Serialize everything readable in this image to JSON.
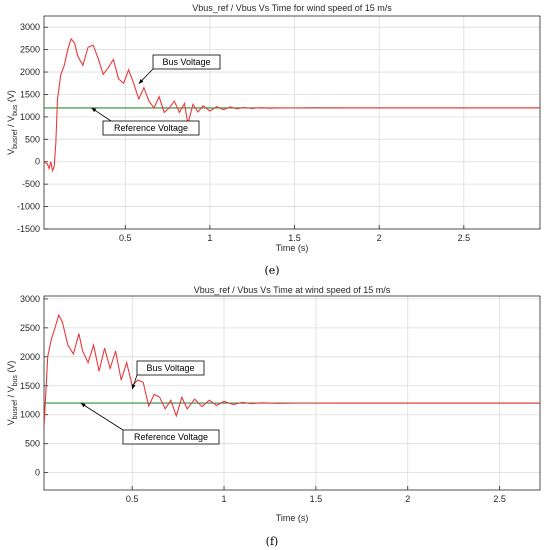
{
  "chart_data": [
    {
      "type": "line",
      "title": "Vbus_ref / Vbus Vs Time for wind speed of 15 m/s",
      "xlabel": "Time (s)",
      "ylabel": "V_busref / V_bus (V)",
      "xlim": [
        0.02,
        2.95
      ],
      "ylim": [
        -1500,
        3250
      ],
      "xticks": [
        0.5,
        1,
        1.5,
        2,
        2.5
      ],
      "xtick_labels": [
        "0.5",
        "1",
        "1.5",
        "2",
        "2.5"
      ],
      "yticks": [
        -1500,
        -1000,
        -500,
        0,
        500,
        1000,
        1500,
        2000,
        2500,
        3000
      ],
      "ytick_labels": [
        "-1500",
        "-1000",
        "-500",
        "0",
        "500",
        "1000",
        "1500",
        "2000",
        "2500",
        "3000"
      ],
      "grid": true,
      "caption": "(e)",
      "annotations": [
        {
          "text": "Bus Voltage",
          "x": 0.58,
          "y": 1740
        },
        {
          "text": "Reference Voltage",
          "x": 0.3,
          "y": 1200
        }
      ],
      "series": [
        {
          "color": "#2e8b3a",
          "x": [
            0.02,
            2.95
          ],
          "y": [
            1200,
            1200
          ]
        },
        {
          "color": "#e8393c",
          "x": [
            0.02,
            0.04,
            0.05,
            0.06,
            0.07,
            0.08,
            0.09,
            0.1,
            0.12,
            0.14,
            0.16,
            0.18,
            0.2,
            0.22,
            0.25,
            0.28,
            0.31,
            0.34,
            0.37,
            0.4,
            0.43,
            0.46,
            0.49,
            0.52,
            0.55,
            0.58,
            0.61,
            0.64,
            0.67,
            0.7,
            0.73,
            0.76,
            0.79,
            0.82,
            0.85,
            0.87,
            0.9,
            0.93,
            0.96,
            1.0,
            1.04,
            1.08,
            1.12,
            1.16,
            1.2,
            1.25,
            1.3,
            1.35,
            1.4,
            1.5,
            1.6,
            1.8,
            2.0,
            2.2,
            2.5,
            2.95
          ],
          "y": [
            0,
            -50,
            -150,
            0,
            -200,
            -100,
            400,
            1400,
            1950,
            2150,
            2500,
            2740,
            2650,
            2350,
            2150,
            2550,
            2600,
            2300,
            1950,
            2100,
            2280,
            1850,
            1750,
            2050,
            1750,
            1400,
            1650,
            1350,
            1200,
            1450,
            1100,
            1200,
            1350,
            1100,
            1300,
            850,
            1280,
            1110,
            1250,
            1130,
            1230,
            1160,
            1220,
            1180,
            1210,
            1190,
            1205,
            1195,
            1200,
            1198,
            1202,
            1200,
            1200,
            1200,
            1200,
            1200
          ]
        }
      ]
    },
    {
      "type": "line",
      "title": "Vbus_ref / Vbus Vs Time at wind speed of 15 m/s",
      "xlabel": "Time (s)",
      "ylabel": "V_busref / V_bus (V)",
      "xlim": [
        0.02,
        2.72
      ],
      "ylim": [
        -300,
        3050
      ],
      "xticks": [
        0.5,
        1,
        1.5,
        2,
        2.5
      ],
      "xtick_labels": [
        "0.5",
        "1",
        "1.5",
        "2",
        "2.5"
      ],
      "yticks": [
        0,
        500,
        1000,
        1500,
        2000,
        2500,
        3000
      ],
      "ytick_labels": [
        "0",
        "500",
        "1000",
        "1500",
        "2000",
        "2500",
        "3000"
      ],
      "grid": true,
      "caption": "(f)",
      "annotations": [
        {
          "text": "Bus Voltage",
          "x": 0.5,
          "y": 1440
        },
        {
          "text": "Reference Voltage",
          "x": 0.22,
          "y": 1200
        }
      ],
      "series": [
        {
          "color": "#2e8b3a",
          "x": [
            0.02,
            2.72
          ],
          "y": [
            1200,
            1200
          ]
        },
        {
          "color": "#e8393c",
          "x": [
            0.02,
            0.04,
            0.06,
            0.08,
            0.1,
            0.12,
            0.15,
            0.18,
            0.21,
            0.23,
            0.26,
            0.29,
            0.32,
            0.35,
            0.38,
            0.41,
            0.44,
            0.47,
            0.5,
            0.53,
            0.56,
            0.59,
            0.62,
            0.65,
            0.68,
            0.71,
            0.74,
            0.77,
            0.8,
            0.84,
            0.88,
            0.92,
            0.96,
            1.0,
            1.05,
            1.1,
            1.15,
            1.2,
            1.3,
            1.4,
            1.6,
            1.8,
            2.0,
            2.3,
            2.72
          ],
          "y": [
            780,
            2000,
            2300,
            2500,
            2720,
            2600,
            2200,
            2050,
            2400,
            2100,
            1900,
            2200,
            1750,
            2150,
            1800,
            2100,
            1600,
            1900,
            1500,
            1600,
            1560,
            1150,
            1350,
            1300,
            1100,
            1250,
            980,
            1300,
            1100,
            1270,
            1140,
            1250,
            1160,
            1230,
            1175,
            1215,
            1190,
            1205,
            1197,
            1203,
            1200,
            1200,
            1200,
            1200,
            1200
          ]
        }
      ]
    }
  ]
}
